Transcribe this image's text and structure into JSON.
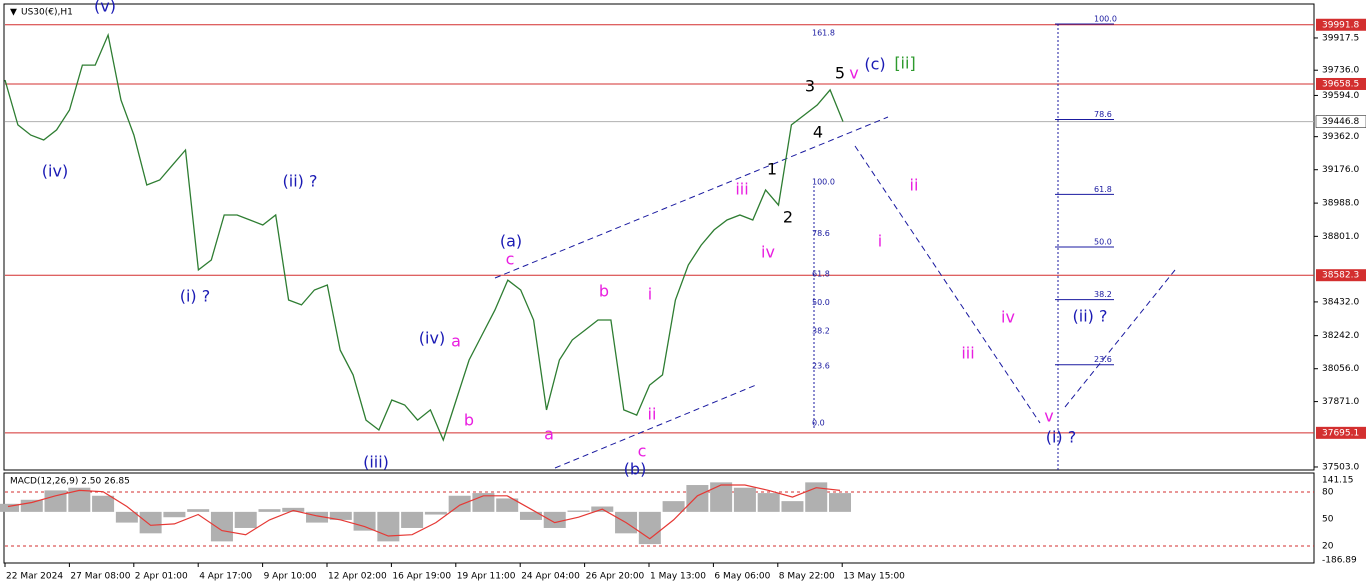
{
  "chart_data": {
    "type": "line",
    "title": "US30(€),H1",
    "x_labels": [
      "22 Mar 2024",
      "27 Mar 08:00",
      "2 Apr 01:00",
      "4 Apr 17:00",
      "9 Apr 10:00",
      "12 Apr 02:00",
      "16 Apr 19:00",
      "19 Apr 11:00",
      "24 Apr 04:00",
      "26 Apr 20:00",
      "1 May 13:00",
      "6 May 06:00",
      "8 May 22:00",
      "13 May 15:00"
    ],
    "values": [
      39681,
      39428,
      39371,
      39343,
      39400,
      39512,
      39765,
      39765,
      39934,
      39568,
      39371,
      39090,
      39118,
      39203,
      39287,
      38612,
      38668,
      38921,
      38921,
      38893,
      38865,
      38921,
      38443,
      38415,
      38499,
      38527,
      38161,
      38021,
      37767,
      37711,
      37880,
      37852,
      37767,
      37824,
      37655,
      37880,
      38105,
      38246,
      38386,
      38555,
      38499,
      38330,
      37824,
      38105,
      38218,
      38274,
      38330,
      38330,
      37824,
      37795,
      37964,
      38021,
      38443,
      38640,
      38752,
      38837,
      38893,
      38921,
      38893,
      39062,
      38977,
      39428,
      39484,
      39540,
      39625,
      39446.8
    ],
    "color": "#2e7d32",
    "ylim": [
      37486,
      40103
    ],
    "yticks": [
      39917.5,
      {
        "value": 39736,
        "label": "39736.0"
      },
      {
        "value": 39594,
        "label": "39594.0"
      },
      {
        "value": 39362,
        "label": "39362.0"
      },
      {
        "value": 39176,
        "label": "39176.0"
      },
      {
        "value": 38988,
        "label": "38988.0"
      },
      {
        "value": 38801,
        "label": "38801.0"
      },
      {
        "value": 38432,
        "label": "38432.0"
      },
      {
        "value": 38242,
        "label": "38242.0"
      },
      {
        "value": 38056,
        "label": "38056.0"
      },
      {
        "value": 37871,
        "label": "37871.0"
      },
      {
        "value": 37503,
        "label": "37503.0"
      }
    ],
    "levels": [
      39991.8,
      39658.5,
      38582.3,
      37695.1
    ],
    "level_color": "#d32f2f",
    "current_price": 39446.8,
    "fib_left": [
      {
        "value": 161.8,
        "label": "161.8"
      },
      {
        "value": 100,
        "label": "100.0"
      },
      {
        "value": 78.6,
        "label": "78.6"
      },
      {
        "value": 61.8,
        "label": "61.8"
      },
      {
        "value": 50,
        "label": "50.0"
      },
      {
        "value": 38.2,
        "label": "38.2"
      },
      {
        "value": 23.6,
        "label": "23.6"
      },
      {
        "value": 0,
        "label": "0.0"
      }
    ],
    "fib_right": [
      {
        "value": 100,
        "label": "100.0"
      },
      {
        "value": 78.6,
        "label": "78.6"
      },
      {
        "value": 61.8,
        "label": "61.8"
      },
      {
        "value": 50,
        "label": "50.0"
      },
      {
        "value": 38.2,
        "label": "38.2"
      },
      {
        "value": 23.6,
        "label": "23.6"
      }
    ],
    "wave_labels": [
      "(v)",
      "(iv)",
      "(ii) ?",
      "(i) ?",
      "(iii)",
      "(iv)",
      "a",
      "b",
      "(a)",
      "c",
      "a",
      "b",
      "i",
      "ii",
      "c",
      "(b)",
      "iii",
      "iv",
      "1",
      "2",
      "3",
      "4",
      "5",
      "v",
      "(c)",
      "[ii]",
      "ii",
      "i",
      "iv",
      "iii",
      "v",
      "(i) ?",
      "(ii) ?"
    ],
    "indicator": {
      "title": "MACD(12,26,9) 2.50 26.85",
      "ylim": [
        -186.89,
        141.15
      ],
      "yticks": [
        141.15,
        80,
        50,
        20,
        -186.89
      ],
      "histogram": [
        30,
        45,
        80,
        90,
        60,
        -40,
        -80,
        -20,
        10,
        -110,
        -60,
        10,
        15,
        -40,
        -30,
        -70,
        -110,
        -60,
        -10,
        60,
        70,
        50,
        -30,
        -60,
        5,
        20,
        -80,
        -120,
        40,
        100,
        110,
        90,
        70,
        40,
        110,
        70
      ],
      "signal": [
        20,
        35,
        60,
        80,
        75,
        20,
        -50,
        -45,
        -10,
        -70,
        -85,
        -30,
        5,
        -15,
        -30,
        -55,
        -90,
        -85,
        -40,
        25,
        60,
        60,
        10,
        -40,
        -20,
        10,
        -40,
        -100,
        -30,
        60,
        100,
        100,
        80,
        55,
        90,
        80
      ],
      "histogram_color": "#b0b0b0",
      "signal_color": "#e53935"
    }
  }
}
